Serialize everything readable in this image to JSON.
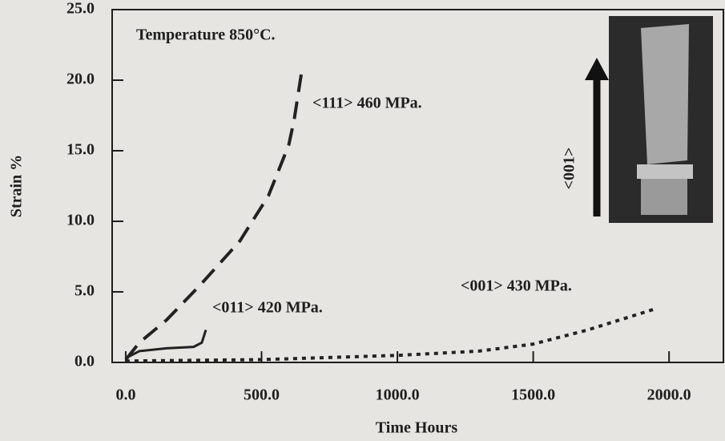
{
  "chart_data": {
    "type": "line",
    "annotation": "Temperature  850°C.",
    "inset_label": "<001>",
    "xlabel": "Time Hours",
    "ylabel": "Strain %",
    "xlim": [
      -50,
      2200
    ],
    "ylim": [
      0,
      25
    ],
    "xticks": [
      {
        "value": 0,
        "label": "0.0"
      },
      {
        "value": 500,
        "label": "500.0"
      },
      {
        "value": 1000,
        "label": "1000.0"
      },
      {
        "value": 1500,
        "label": "1500.0"
      },
      {
        "value": 2000,
        "label": "2000.0"
      }
    ],
    "yticks": [
      {
        "value": 0,
        "label": "0.0"
      },
      {
        "value": 5,
        "label": "5.0"
      },
      {
        "value": 10,
        "label": "10.0"
      },
      {
        "value": 15,
        "label": "15.0"
      },
      {
        "value": 20,
        "label": "20.0"
      },
      {
        "value": 25,
        "label": "25.0"
      }
    ],
    "series": [
      {
        "name": "<111> 460 MPa.",
        "color": "#222222",
        "line_style": "dashed",
        "x": [
          0,
          50,
          150,
          275,
          420,
          525,
          600,
          620,
          650
        ],
        "values": [
          0.2,
          1.4,
          3,
          5.5,
          8.6,
          11.8,
          15.4,
          17.2,
          20.9
        ]
      },
      {
        "name": "<011> 420 MPa.",
        "color": "#222222",
        "line_style": "solid",
        "x": [
          0,
          50,
          150,
          250,
          280,
          295
        ],
        "values": [
          0.3,
          0.8,
          1.0,
          1.1,
          1.4,
          2.3
        ]
      },
      {
        "name": "<001> 430 MPa.",
        "color": "#222222",
        "line_style": "dotted",
        "x": [
          0,
          500,
          1000,
          1300,
          1500,
          1700,
          1950
        ],
        "values": [
          0.1,
          0.2,
          0.5,
          0.8,
          1.3,
          2.3,
          3.8
        ]
      }
    ]
  }
}
